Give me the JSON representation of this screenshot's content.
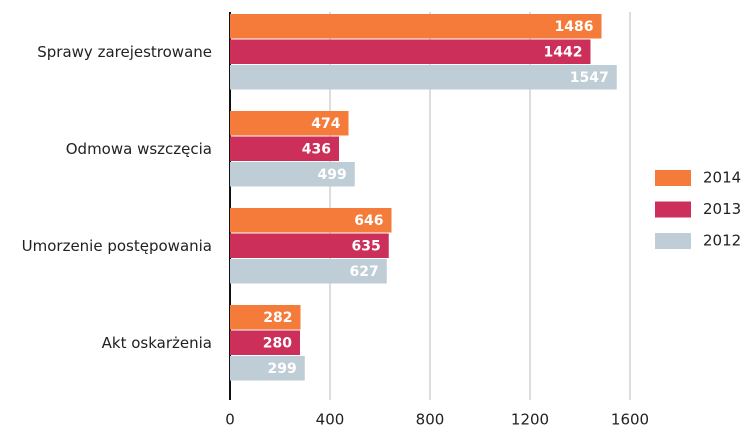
{
  "chart_data": {
    "type": "hbar",
    "categories": [
      "Sprawy zarejestrowane",
      "Odmowa wszczęcia",
      "Umorzenie postępowania",
      "Akt oskarżenia"
    ],
    "series": [
      {
        "name": "2014",
        "color": "#f47b3a",
        "values": [
          1486,
          474,
          646,
          282
        ]
      },
      {
        "name": "2013",
        "color": "#cc2f5a",
        "values": [
          1442,
          436,
          635,
          280
        ]
      },
      {
        "name": "2012",
        "color": "#bfcdd6",
        "values": [
          1547,
          499,
          627,
          299
        ]
      }
    ],
    "xlim": [
      0,
      1600
    ],
    "xticks": [
      0,
      400,
      800,
      1200,
      1600
    ],
    "grid": true,
    "legend": "right"
  }
}
